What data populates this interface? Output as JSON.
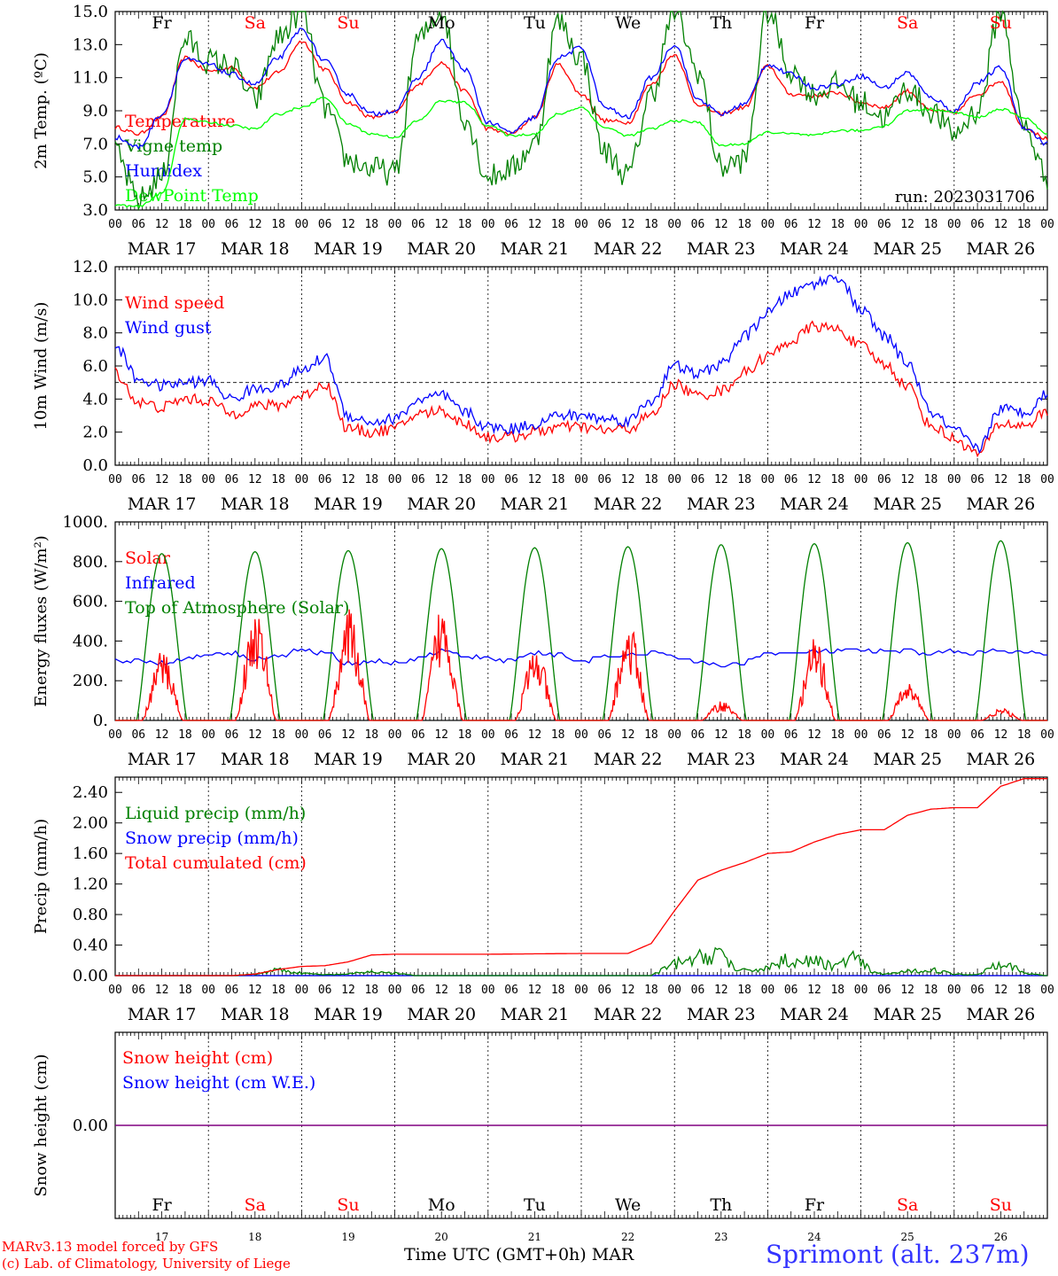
{
  "chart_data": [
    {
      "type": "line",
      "ylabel": "2m Temp. (ºC)",
      "ylim": [
        3.0,
        15.0
      ],
      "yticks": [
        "3.0",
        "5.0",
        "7.0",
        "9.0",
        "11.0",
        "13.0",
        "15.0"
      ],
      "run_label": "run: 2023031706",
      "day_codes": [
        "Fr",
        "Sa",
        "Su",
        "Mo",
        "Tu",
        "We",
        "Th",
        "Fr",
        "Sa",
        "Su"
      ],
      "weekend_days": [
        "Sa",
        "Su"
      ],
      "x_hours": [
        0,
        6,
        12,
        18,
        24,
        30,
        36,
        42,
        48,
        54,
        60,
        66,
        72,
        78,
        84,
        90,
        96,
        102,
        108,
        114,
        120,
        126,
        132,
        138,
        144,
        150,
        156,
        162,
        168,
        174,
        180,
        186,
        192,
        198,
        204,
        210,
        216,
        222,
        228,
        234,
        240
      ],
      "series": [
        {
          "name": "Temperature",
          "color": "#ff0000",
          "values": [
            8.0,
            7.6,
            8.6,
            12.2,
            11.4,
            11.6,
            10.4,
            11.3,
            13.2,
            11.5,
            9.5,
            8.6,
            8.9,
            10.6,
            11.9,
            10.2,
            7.9,
            7.6,
            8.6,
            11.8,
            10.0,
            8.4,
            8.3,
            10.6,
            12.4,
            9.4,
            8.8,
            9.2,
            11.7,
            10.0,
            9.9,
            10.1,
            9.5,
            9.2,
            10.2,
            9.0,
            8.9,
            10.0,
            10.8,
            8.0,
            7.3
          ]
        },
        {
          "name": "Vigne temp",
          "color": "#008000",
          "values": [
            6.4,
            3.6,
            5.0,
            13.3,
            12.0,
            11.7,
            9.6,
            13.4,
            15.0,
            9.2,
            6.0,
            5.5,
            5.2,
            13.3,
            15.0,
            8.6,
            5.0,
            5.5,
            7.0,
            14.4,
            12.2,
            6.5,
            5.1,
            10.0,
            15.0,
            11.4,
            5.6,
            6.0,
            15.0,
            11.4,
            10.0,
            10.6,
            9.5,
            8.6,
            10.3,
            9.0,
            7.6,
            9.0,
            15.0,
            8.0,
            5.0
          ]
        },
        {
          "name": "Humidex",
          "color": "#0000ff",
          "values": [
            7.4,
            6.8,
            8.8,
            12.1,
            11.8,
            11.2,
            10.6,
            12.2,
            13.9,
            12.0,
            10.0,
            8.8,
            9.0,
            11.0,
            13.2,
            11.5,
            8.3,
            7.7,
            8.6,
            12.2,
            12.8,
            9.2,
            8.6,
            11.0,
            13.0,
            9.7,
            8.8,
            9.4,
            11.8,
            11.2,
            10.4,
            10.6,
            11.1,
            10.4,
            11.3,
            9.8,
            9.0,
            10.7,
            11.6,
            8.0,
            7.0
          ]
        },
        {
          "name": "DewPoint Temp",
          "color": "#00ff00",
          "values": [
            3.3,
            3.2,
            4.0,
            8.5,
            8.3,
            8.1,
            7.9,
            8.8,
            9.2,
            9.8,
            8.2,
            7.6,
            7.4,
            8.4,
            9.6,
            9.5,
            8.1,
            7.5,
            7.6,
            8.8,
            9.2,
            8.0,
            7.5,
            7.9,
            8.4,
            8.3,
            6.9,
            7.0,
            7.7,
            7.6,
            7.5,
            7.8,
            7.8,
            8.1,
            9.0,
            9.1,
            8.9,
            8.6,
            9.1,
            8.6,
            7.6
          ]
        }
      ]
    },
    {
      "type": "line",
      "ylabel": "10m Wind (m/s)",
      "ylim": [
        0.0,
        12.0
      ],
      "yticks": [
        "0.0",
        "2.0",
        "4.0",
        "6.0",
        "8.0",
        "10.0",
        "12.0"
      ],
      "reference_line": 5.0,
      "series": [
        {
          "name": "Wind speed",
          "color": "#ff0000",
          "values": [
            5.6,
            3.8,
            3.5,
            4.0,
            3.9,
            3.1,
            3.6,
            3.6,
            4.2,
            4.9,
            2.2,
            2.0,
            2.2,
            3.1,
            3.3,
            2.5,
            1.7,
            1.7,
            2.0,
            2.3,
            2.3,
            2.1,
            2.2,
            3.0,
            4.9,
            4.2,
            4.5,
            5.6,
            6.6,
            7.5,
            8.4,
            8.2,
            7.2,
            6.1,
            4.8,
            2.4,
            1.6,
            0.7,
            2.5,
            2.4,
            3.2
          ]
        },
        {
          "name": "Wind gust",
          "color": "#0000ff",
          "values": [
            7.2,
            5.2,
            4.8,
            5.0,
            5.1,
            4.0,
            4.6,
            4.8,
            5.7,
            6.5,
            3.0,
            2.6,
            2.8,
            3.9,
            4.2,
            3.2,
            2.3,
            2.2,
            2.5,
            3.0,
            3.0,
            2.8,
            2.7,
            3.9,
            6.0,
            5.5,
            6.1,
            7.8,
            9.2,
            10.4,
            11.0,
            11.4,
            9.4,
            7.8,
            6.2,
            3.2,
            2.1,
            1.0,
            3.4,
            3.2,
            4.3
          ]
        }
      ]
    },
    {
      "type": "line",
      "ylabel": "Energy fluxes (W/m²)",
      "ylim": [
        0,
        1000
      ],
      "yticks": [
        "0.",
        "200.",
        "400.",
        "600.",
        "800.",
        "1000."
      ],
      "series": [
        {
          "name": "Solar",
          "color": "#ff0000",
          "peaks": [
            360,
            560,
            560,
            590,
            370,
            490,
            100,
            420,
            200,
            60
          ]
        },
        {
          "name": "Infrared",
          "color": "#0000ff",
          "values": [
            300,
            300,
            290,
            310,
            335,
            340,
            310,
            325,
            355,
            340,
            290,
            300,
            290,
            310,
            350,
            320,
            310,
            305,
            340,
            330,
            300,
            315,
            330,
            340,
            320,
            300,
            270,
            295,
            340,
            335,
            350,
            350,
            350,
            345,
            350,
            340,
            345,
            340,
            350,
            340,
            330
          ]
        },
        {
          "name": "Top of Atmosphere (Solar)",
          "color": "#008000",
          "peaks": [
            840,
            850,
            855,
            865,
            870,
            875,
            885,
            890,
            895,
            905
          ]
        }
      ]
    },
    {
      "type": "line",
      "ylabel": "Precip (mm/h)",
      "ylim": [
        0.0,
        2.6
      ],
      "yticks": [
        "0.00",
        "0.40",
        "0.80",
        "1.20",
        "1.60",
        "2.00",
        "2.40"
      ],
      "series": [
        {
          "name": "Liquid precip (mm/h)",
          "color": "#008000",
          "points": [
            [
              0,
              0
            ],
            [
              30,
              0
            ],
            [
              36,
              0.02
            ],
            [
              42,
              0.08
            ],
            [
              48,
              0.03
            ],
            [
              54,
              0.01
            ],
            [
              60,
              0.02
            ],
            [
              66,
              0.05
            ],
            [
              72,
              0.03
            ],
            [
              78,
              0
            ],
            [
              138,
              0
            ],
            [
              144,
              0.15
            ],
            [
              150,
              0.22
            ],
            [
              156,
              0.32
            ],
            [
              160,
              0.05
            ],
            [
              168,
              0.1
            ],
            [
              172,
              0.2
            ],
            [
              180,
              0.18
            ],
            [
              186,
              0.12
            ],
            [
              190,
              0.25
            ],
            [
              195,
              0.04
            ],
            [
              198,
              0.02
            ],
            [
              210,
              0.08
            ],
            [
              216,
              0.02
            ],
            [
              222,
              0.01
            ],
            [
              228,
              0.2
            ],
            [
              234,
              0.03
            ],
            [
              240,
              0
            ]
          ]
        },
        {
          "name": "Snow precip (mm/h)",
          "color": "#0000ff",
          "points": [
            [
              0,
              0
            ],
            [
              240,
              0
            ]
          ]
        },
        {
          "name": "Total cumulated (cm)",
          "color": "#ff0000",
          "points": [
            [
              0,
              0
            ],
            [
              30,
              0
            ],
            [
              36,
              0.02
            ],
            [
              42,
              0.08
            ],
            [
              48,
              0.12
            ],
            [
              54,
              0.13
            ],
            [
              60,
              0.18
            ],
            [
              66,
              0.27
            ],
            [
              72,
              0.28
            ],
            [
              96,
              0.28
            ],
            [
              120,
              0.29
            ],
            [
              132,
              0.29
            ],
            [
              138,
              0.42
            ],
            [
              144,
              0.85
            ],
            [
              150,
              1.25
            ],
            [
              156,
              1.38
            ],
            [
              162,
              1.48
            ],
            [
              168,
              1.6
            ],
            [
              174,
              1.62
            ],
            [
              180,
              1.75
            ],
            [
              186,
              1.85
            ],
            [
              192,
              1.91
            ],
            [
              198,
              1.91
            ],
            [
              204,
              2.1
            ],
            [
              210,
              2.18
            ],
            [
              216,
              2.2
            ],
            [
              222,
              2.2
            ],
            [
              228,
              2.48
            ],
            [
              234,
              2.58
            ],
            [
              240,
              2.58
            ]
          ]
        }
      ]
    },
    {
      "type": "line",
      "ylabel": "Snow height (cm)",
      "ylim": [
        -1.0,
        1.0
      ],
      "yticks": [
        "0.00"
      ],
      "series": [
        {
          "name": "Snow height (cm)",
          "color": "#ff0000",
          "values": [
            0,
            0
          ]
        },
        {
          "name": "Snow height (cm W.E.)",
          "color": "#0000ff",
          "values": [
            0,
            0
          ]
        }
      ]
    }
  ],
  "x_axis": {
    "hour_ticks": [
      "00",
      "06",
      "12",
      "18"
    ],
    "end_tick": "00",
    "date_labels": [
      "MAR 17",
      "MAR 18",
      "MAR 19",
      "MAR 20",
      "MAR 21",
      "MAR 22",
      "MAR 23",
      "MAR 24",
      "MAR 25",
      "MAR 26"
    ],
    "day_numbers": [
      "17",
      "18",
      "19",
      "20",
      "21",
      "22",
      "23",
      "24",
      "25",
      "26"
    ],
    "title": "Time UTC (GMT+0h)",
    "month": "MAR"
  },
  "footer": {
    "model_line": "MARv3.13 model forced by GFS",
    "lab_line": "(c) Lab. of Climatology, University of Liege",
    "station": "Sprimont (alt. 237m)"
  },
  "colors": {
    "red": "#ff0000",
    "green": "#008000",
    "blue": "#0000ff",
    "lime": "#00ff00",
    "weekend": "#ff0000",
    "axis": "#000000",
    "snow_line": "#800080"
  }
}
